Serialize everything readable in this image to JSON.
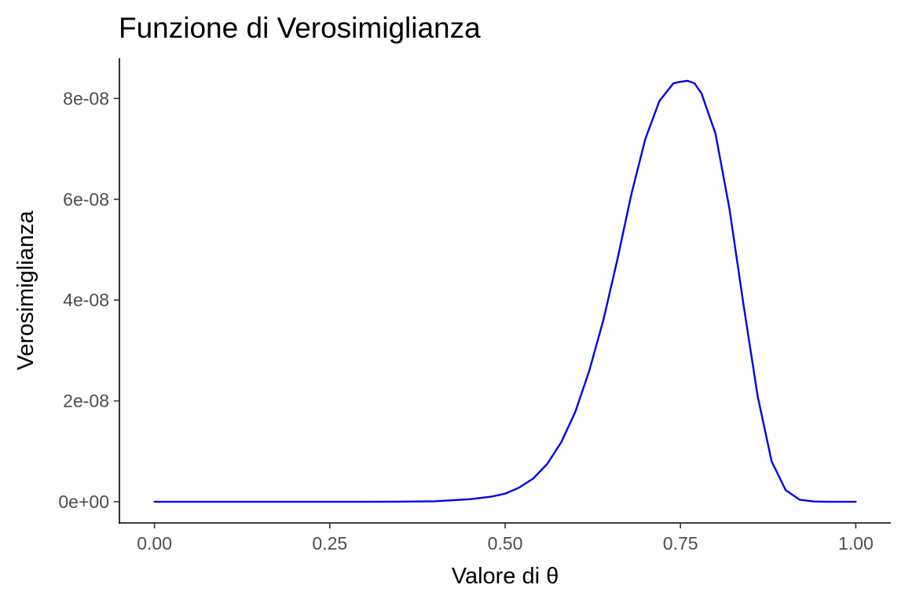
{
  "chart_data": {
    "type": "line",
    "title": "Funzione di Verosimiglianza",
    "xlabel": "Valore di θ",
    "ylabel": "Verosimiglianza",
    "xlim": [
      -0.05,
      1.05
    ],
    "ylim": [
      -4.2e-09,
      8.8e-08
    ],
    "x_ticks": [
      0,
      0.25,
      0.5,
      0.75,
      1.0
    ],
    "x_tick_labels": [
      "0.00",
      "0.25",
      "0.50",
      "0.75",
      "1.00"
    ],
    "y_ticks": [
      0,
      2e-08,
      4e-08,
      6e-08,
      8e-08
    ],
    "y_tick_labels": [
      "0e+00",
      "2e-08",
      "4e-08",
      "6e-08",
      "8e-08"
    ],
    "grid": false,
    "legend": "none",
    "colors": {
      "line": "#0000ee",
      "axis": "#000000",
      "tick_text": "#4d4d4d"
    },
    "series": [
      {
        "x": [
          0.0,
          0.05,
          0.1,
          0.15,
          0.2,
          0.25,
          0.3,
          0.35,
          0.4,
          0.45,
          0.48,
          0.5,
          0.52,
          0.54,
          0.56,
          0.58,
          0.6,
          0.62,
          0.64,
          0.66,
          0.68,
          0.7,
          0.72,
          0.74,
          0.75,
          0.76,
          0.77,
          0.78,
          0.8,
          0.82,
          0.84,
          0.86,
          0.88,
          0.9,
          0.92,
          0.94,
          0.96,
          0.98,
          1.0
        ],
        "y": [
          0,
          0,
          0,
          0,
          0,
          0,
          0,
          1e-11,
          1e-10,
          5e-10,
          1e-09,
          1.6e-09,
          2.8e-09,
          4.6e-09,
          7.5e-09,
          1.18e-08,
          1.78e-08,
          2.6e-08,
          3.6e-08,
          4.8e-08,
          6.1e-08,
          7.2e-08,
          7.95e-08,
          8.3e-08,
          8.33e-08,
          8.35e-08,
          8.3e-08,
          8.1e-08,
          7.3e-08,
          5.8e-08,
          3.9e-08,
          2.1e-08,
          8e-09,
          2.3e-09,
          4e-10,
          5e-11,
          0,
          0,
          0
        ]
      }
    ]
  }
}
